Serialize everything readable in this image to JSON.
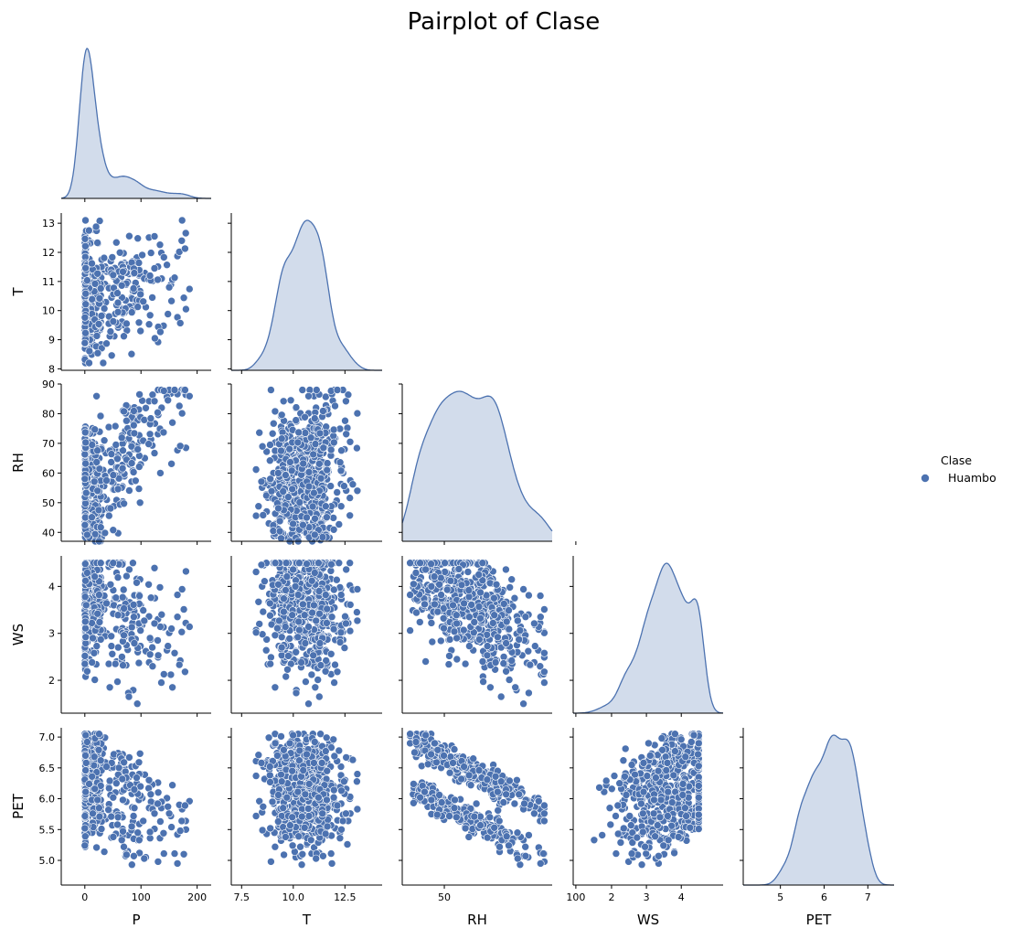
{
  "chart_data": {
    "type": "scatter",
    "kind": "pairplot",
    "corner": true,
    "title": "Pairplot of Clase",
    "hue": "Clase",
    "legend": {
      "title": "Clase",
      "entries": [
        "Huambo"
      ],
      "position": "right"
    },
    "series_color": "#4c72b0",
    "variables": [
      "P",
      "T",
      "RH",
      "WS",
      "PET"
    ],
    "axes": {
      "P": {
        "lim": [
          -42,
          225
        ],
        "ticks": [
          0,
          100,
          200
        ]
      },
      "T": {
        "lim": [
          7.0,
          14.3
        ],
        "ticks": [
          7.5,
          10.0,
          12.5
        ]
      },
      "RH": {
        "lim": [
          34,
          91
        ],
        "ticks": [
          50,
          100
        ],
        "ylim": [
          37,
          90
        ],
        "yticks": [
          40,
          50,
          60,
          70,
          80,
          90
        ]
      },
      "WS": {
        "lim": [
          0.9,
          5.2
        ],
        "ticks": [
          2,
          3,
          4
        ],
        "ylim": [
          1.3,
          4.65
        ],
        "yticks": [
          2,
          3,
          4
        ]
      },
      "PET": {
        "lim": [
          4.15,
          7.6
        ],
        "ticks": [
          5,
          6,
          7
        ],
        "ylim": [
          4.6,
          7.15
        ],
        "yticks": [
          5.0,
          5.5,
          6.0,
          6.5,
          7.0
        ]
      }
    },
    "t_ylim": [
      7.95,
      13.35
    ],
    "t_yticks": [
      8,
      9,
      10,
      11,
      12,
      13
    ],
    "summary": {
      "P": {
        "min": 0,
        "max": 190,
        "skew": "right"
      },
      "T": {
        "min": 8.2,
        "max": 13.1,
        "mean": 10.6
      },
      "RH": {
        "min": 37,
        "max": 88,
        "mean": 62
      },
      "WS": {
        "min": 1.4,
        "max": 4.5,
        "modes": [
          2.4,
          3.4
        ]
      },
      "PET": {
        "min": 4.65,
        "max": 7.05,
        "mean": 5.9
      }
    }
  }
}
